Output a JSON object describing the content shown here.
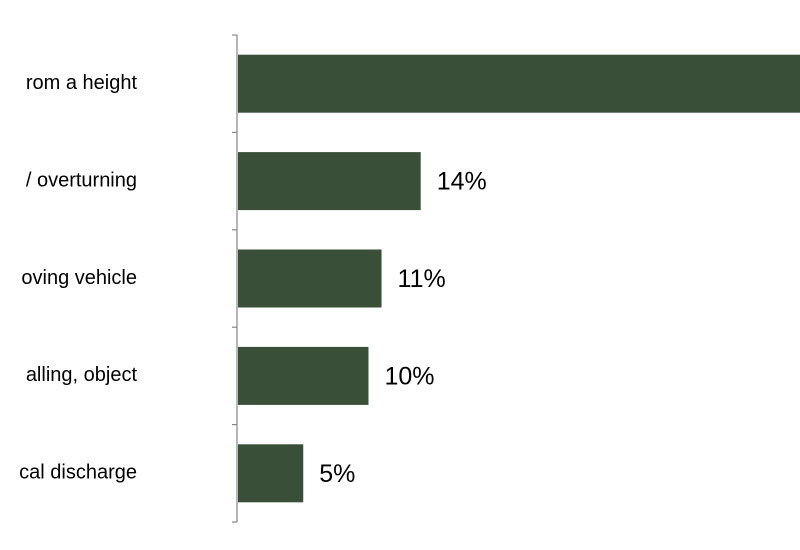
{
  "chart_data": {
    "type": "bar",
    "orientation": "horizontal",
    "categories": [
      "rom a height",
      "/ overturning",
      "oving vehicle",
      "alling, object",
      "cal discharge"
    ],
    "values": [
      50,
      14,
      11,
      10,
      5
    ],
    "value_labels": [
      null,
      "14%",
      "11%",
      "10%",
      "5%"
    ],
    "color": "#3a4f38"
  }
}
